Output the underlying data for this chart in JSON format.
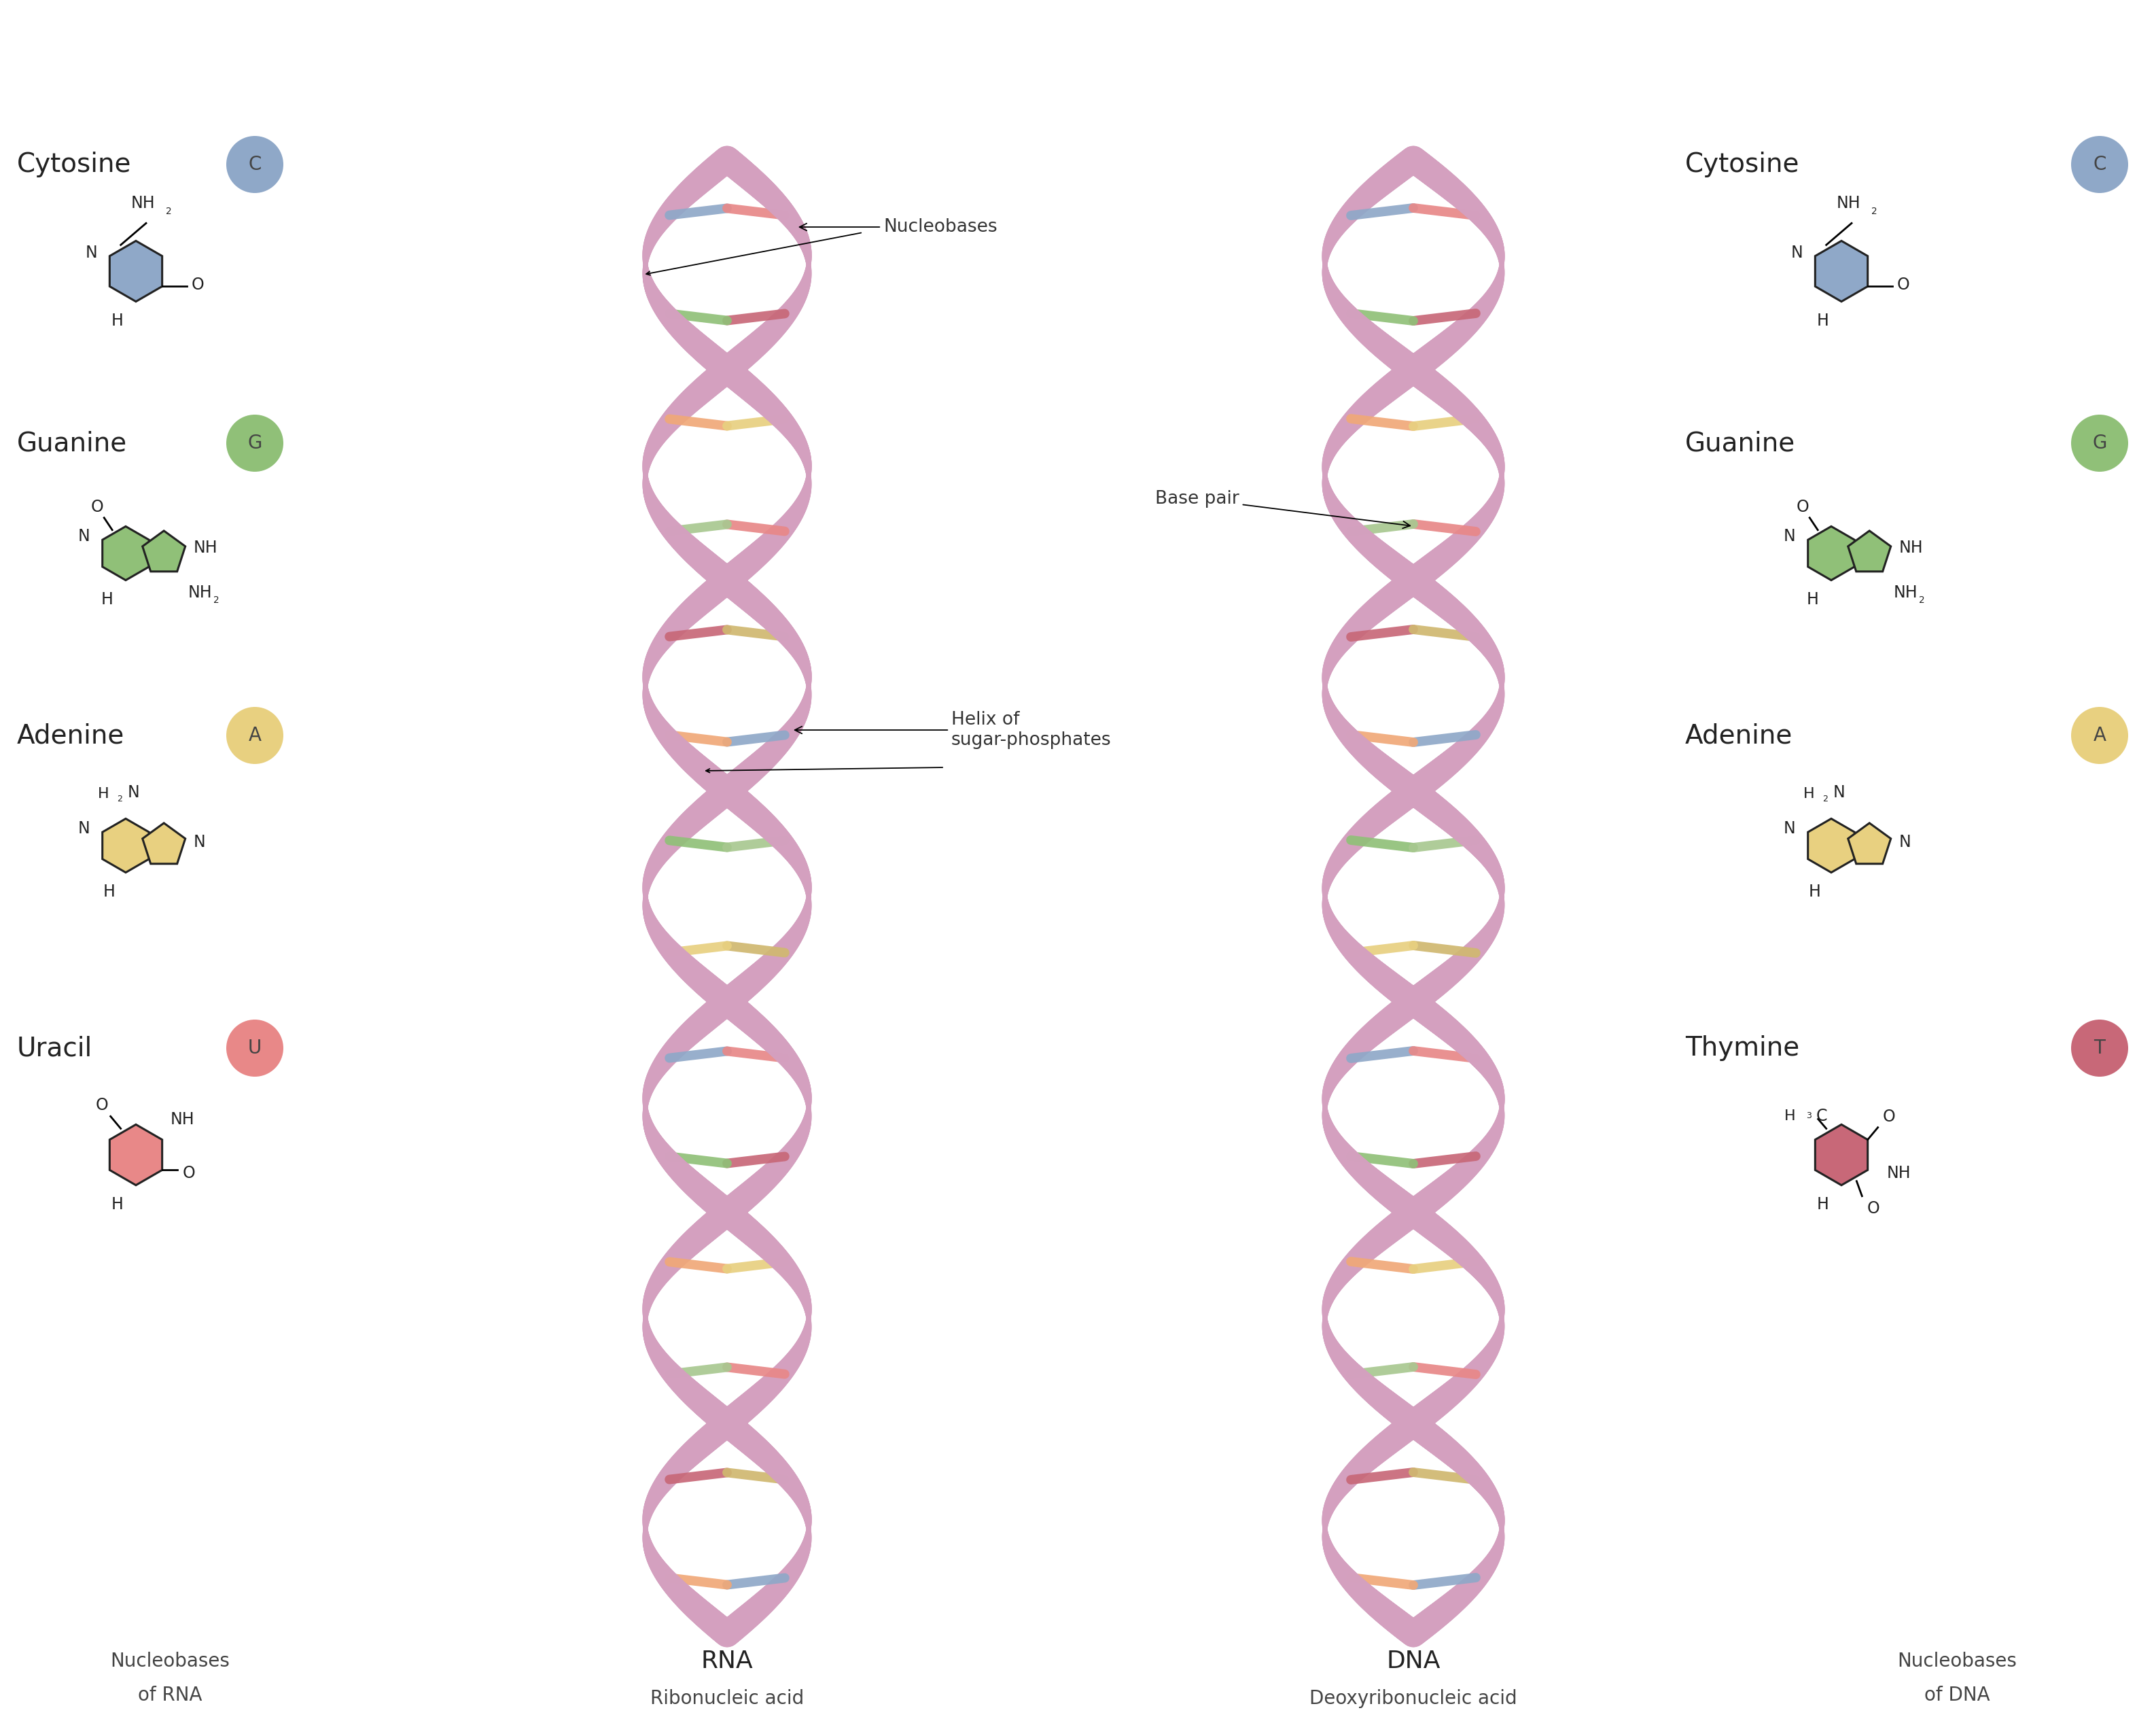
{
  "background_color": "#ffffff",
  "nucleobase_colors": {
    "C": "#8fa8c8",
    "G": "#90c078",
    "A": "#e8d080",
    "U": "#e88888",
    "T": "#c86878"
  },
  "badge_colors": {
    "C": "#8fa8c8",
    "G": "#90c078",
    "A": "#e8d080",
    "U": "#e88888",
    "T": "#c86878"
  },
  "helix_color": "#d4a0bf",
  "helix_color2": "#c890b0",
  "base_pair_colors": [
    "#8fa8c8",
    "#90c078",
    "#e8d080",
    "#e88888",
    "#c86878",
    "#f0a878",
    "#a8c890",
    "#d0b870"
  ],
  "font_size_title": 28,
  "font_size_badge": 24,
  "font_size_chem": 17,
  "font_size_bottom_big": 26,
  "font_size_bottom_small": 22,
  "rna_label": "RNA",
  "rna_sublabel": "Ribonucleic acid",
  "dna_label": "DNA",
  "dna_sublabel": "Deoxyribonucleic acid",
  "left_panel_title1": "Nucleobases",
  "left_panel_title2": "of RNA",
  "right_panel_title1": "Nucleobases",
  "right_panel_title2": "of DNA",
  "annotation_nucleobases": "Nucleobases",
  "annotation_basepair": "Base pair",
  "annotation_helix1": "Helix of",
  "annotation_helix2": "sugar-phosphates"
}
